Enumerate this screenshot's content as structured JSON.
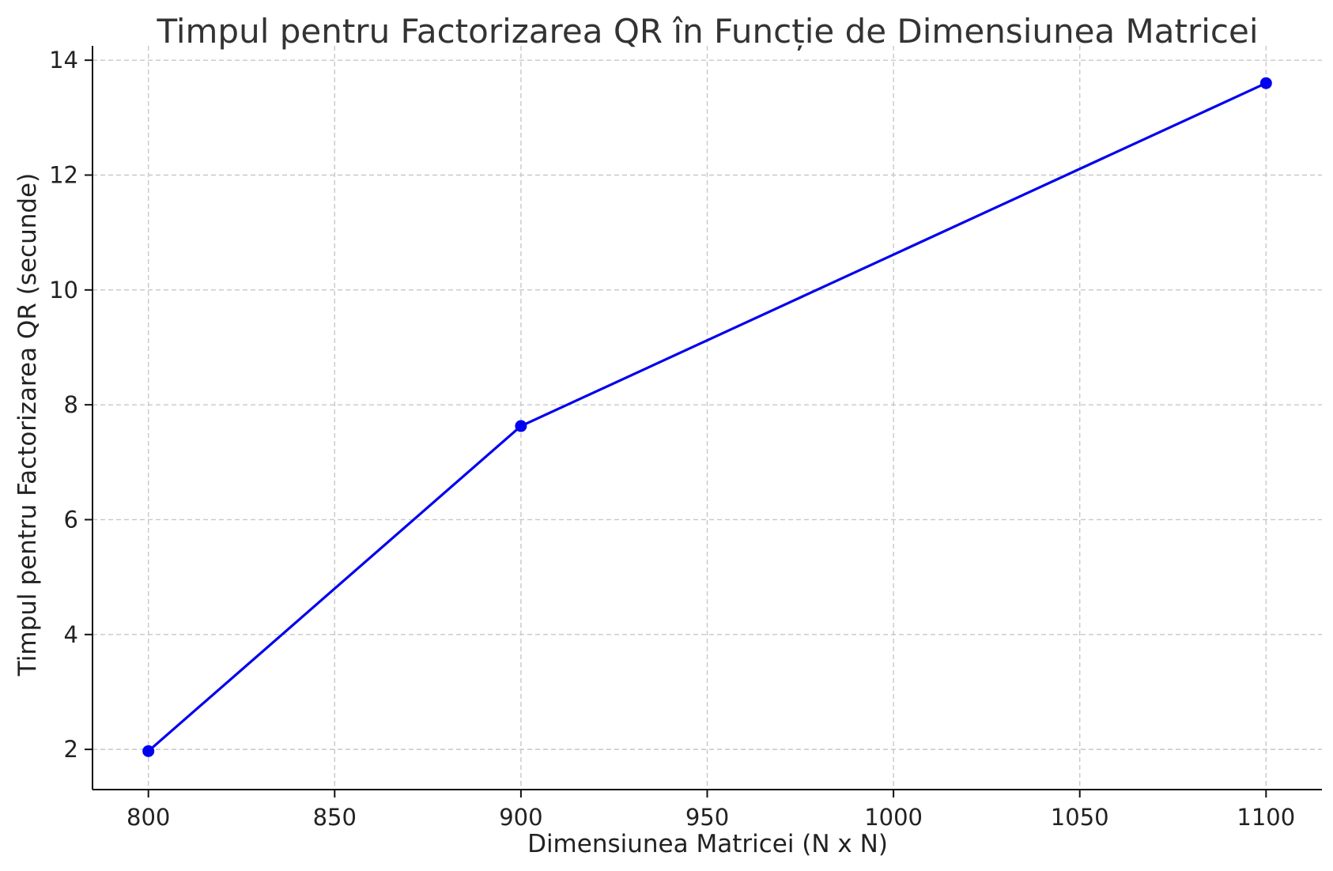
{
  "chart_data": {
    "type": "line",
    "title": "Timpul pentru Factorizarea QR în Funcție de Dimensiunea Matricei",
    "xlabel": "Dimensiunea Matricei (N x N)",
    "ylabel": "Timpul pentru Factorizarea QR (secunde)",
    "x": [
      800,
      900,
      1100
    ],
    "series": [
      {
        "values": [
          1.97,
          7.63,
          13.6
        ],
        "color": "#0000ee",
        "marker": "circle"
      }
    ],
    "xlim": [
      785,
      1115
    ],
    "ylim": [
      1.3,
      14.25
    ],
    "xticks": [
      800,
      850,
      900,
      950,
      1000,
      1050,
      1100
    ],
    "yticks": [
      2,
      4,
      6,
      8,
      10,
      12,
      14
    ],
    "grid": true,
    "legend": "none"
  }
}
